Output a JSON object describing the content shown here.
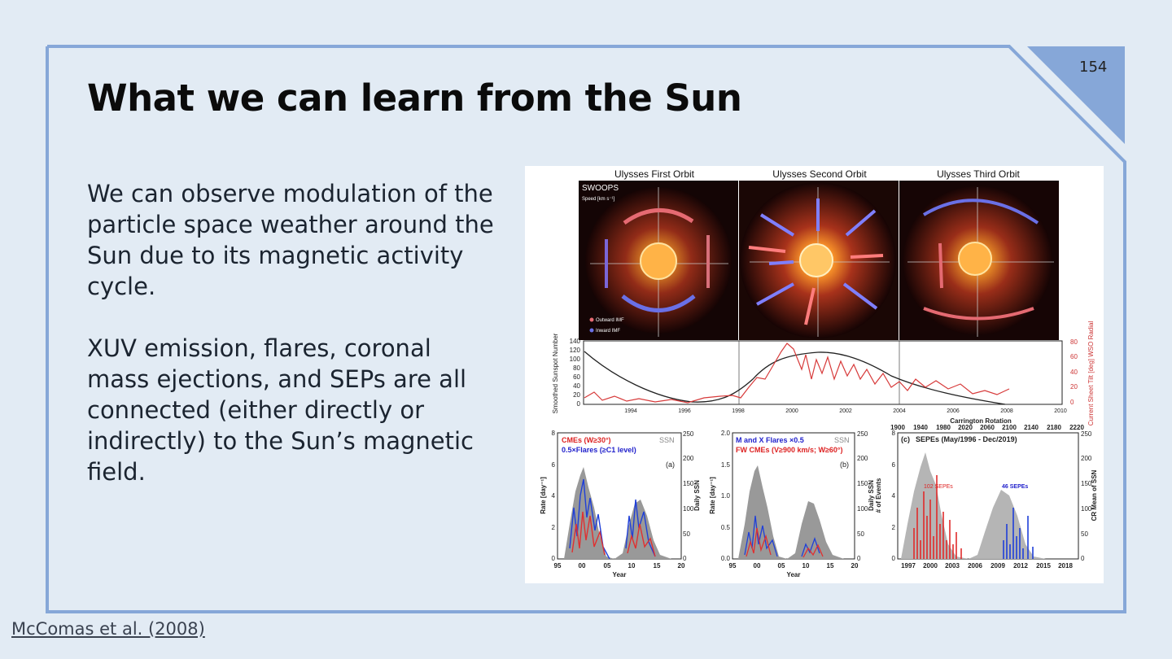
{
  "slide": {
    "title": "What we can learn from the Sun",
    "page_number": "154",
    "paragraphs": [
      "We can observe modulation of the particle space weather around the Sun due to its magnetic activity cycle.",
      "XUV emission, flares, coronal mass ejections, and SEPs are all connected (either directly or indirectly) to the Sun’s magnetic field."
    ],
    "citation": "McComas et al. (2008)"
  },
  "figure": {
    "orbits": [
      "Ulysses First Orbit",
      "Ulysses Second Orbit",
      "Ulysses Third Orbit"
    ],
    "panel_label": "SWOOPS",
    "speed_label": "Speed [km s⁻¹]",
    "legend_out": "Outward IMF",
    "legend_in": "Inward IMF",
    "sunspot": {
      "ylabel": "Smoothed Sunspot Number",
      "ylabel_right": "Current Sheet Tilt [deg] WSO Radial",
      "xticks": [
        "1994",
        "1996",
        "1998",
        "2000",
        "2002",
        "2004",
        "2006",
        "2008",
        "2010"
      ],
      "yticks": [
        "0",
        "20",
        "40",
        "60",
        "80",
        "100",
        "120",
        "140"
      ],
      "yticks_right": [
        "0",
        "20",
        "40",
        "60",
        "80"
      ]
    },
    "panel_a": {
      "legend1": "CMEs (W≥30°)",
      "legend2": "0.5×Flares (≥C1 level)",
      "ssn": "SSN",
      "tag": "(a)",
      "ylabel": "Rate [day⁻¹]",
      "ylabel_right": "Daily SSN",
      "xlabel": "Year",
      "xticks": [
        "95",
        "00",
        "05",
        "10",
        "15",
        "20"
      ],
      "yticks": [
        "0",
        "2",
        "4",
        "6",
        "8"
      ],
      "yticks_right": [
        "0",
        "50",
        "100",
        "150",
        "200",
        "250"
      ]
    },
    "panel_b": {
      "legend1": "M and X Flares ×0.5",
      "legend2": "FW CMEs (V≥900 km/s; W≥60°)",
      "ssn": "SSN",
      "tag": "(b)",
      "ylabel": "Rate [day⁻¹]",
      "ylabel_right": "Daily SSN",
      "xlabel": "Year",
      "xticks": [
        "95",
        "00",
        "05",
        "10",
        "15",
        "20"
      ],
      "yticks": [
        "0.0",
        "0.5",
        "1.0",
        "1.5",
        "2.0"
      ],
      "yticks_right": [
        "0",
        "50",
        "100",
        "150",
        "200",
        "250"
      ]
    },
    "panel_c": {
      "top_label": "Carrington Rotation",
      "top_ticks": [
        "1900",
        "1940",
        "1980",
        "2020",
        "2060",
        "2100",
        "2140",
        "2180",
        "2220"
      ],
      "tag": "(c)",
      "title": "SEPEs (May/1996 - Dec/2019)",
      "ylabel": "# of Events",
      "ylabel_right": "CR Mean of SSN",
      "count1": "102 SEPEs",
      "count2": "46 SEPEs",
      "xticks": [
        "1997",
        "2000",
        "2003",
        "2006",
        "2009",
        "2012",
        "2015",
        "2018"
      ],
      "yticks": [
        "0",
        "2",
        "4",
        "6",
        "8"
      ],
      "yticks_right": [
        "0",
        "50",
        "100",
        "150",
        "200",
        "250"
      ]
    }
  }
}
